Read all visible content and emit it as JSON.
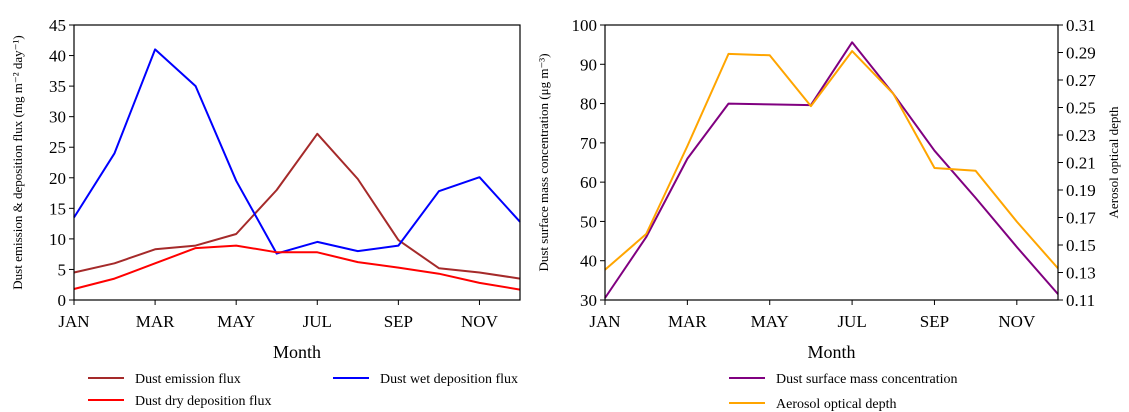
{
  "chart_data": [
    {
      "type": "line",
      "x": [
        "JAN",
        "FEB",
        "MAR",
        "APR",
        "MAY",
        "JUN",
        "JUL",
        "AUG",
        "SEP",
        "OCT",
        "NOV",
        "DEC"
      ],
      "xticks": [
        "JAN",
        "MAR",
        "MAY",
        "JUL",
        "SEP",
        "NOV"
      ],
      "xlabel": "Month",
      "ylabel": "Dust emission & deposition flux (mg m⁻² day⁻¹)",
      "ylim": [
        0,
        45
      ],
      "yticks": [
        "0",
        "5",
        "10",
        "15",
        "20",
        "25",
        "30",
        "35",
        "40",
        "45"
      ],
      "legend": "bottom",
      "series": [
        {
          "name": "Dust emission flux",
          "color": "#a52a2a",
          "values": [
            4.5,
            6.0,
            8.3,
            8.9,
            10.8,
            18.0,
            27.2,
            19.8,
            9.8,
            5.2,
            4.5,
            3.5
          ]
        },
        {
          "name": "Dust wet deposition flux",
          "color": "#0000ff",
          "values": [
            13.5,
            24.0,
            41.0,
            35.0,
            19.5,
            7.6,
            9.5,
            8.0,
            8.9,
            17.8,
            20.1,
            12.8
          ]
        },
        {
          "name": "Dust dry deposition flux",
          "color": "#ff0000",
          "values": [
            1.8,
            3.5,
            6.0,
            8.5,
            8.9,
            7.8,
            7.8,
            6.2,
            5.3,
            4.3,
            2.8,
            1.7
          ]
        }
      ]
    },
    {
      "type": "line",
      "x": [
        "JAN",
        "FEB",
        "MAR",
        "APR",
        "MAY",
        "JUN",
        "JUL",
        "AUG",
        "SEP",
        "OCT",
        "NOV",
        "DEC"
      ],
      "xticks": [
        "JAN",
        "MAR",
        "MAY",
        "JUL",
        "SEP",
        "NOV"
      ],
      "xlabel": "Month",
      "ylabel": "Dust surface mass concentration (μg m⁻³)",
      "ylim": [
        30,
        100
      ],
      "yticks": [
        "30",
        "40",
        "50",
        "60",
        "70",
        "80",
        "90",
        "100"
      ],
      "ylabel_right": "Aerosol optical depth",
      "ylim_right": [
        0.11,
        0.31
      ],
      "yticks_right": [
        "0.11",
        "0.13",
        "0.15",
        "0.17",
        "0.19",
        "0.21",
        "0.23",
        "0.25",
        "0.27",
        "0.29",
        "0.31"
      ],
      "legend": "bottom",
      "series": [
        {
          "name": "Dust surface mass concentration",
          "color": "#800080",
          "axis": "left",
          "values": [
            30.5,
            46.0,
            66.0,
            80.0,
            79.8,
            79.6,
            95.6,
            82.5,
            68.0,
            56.0,
            43.5,
            31.5
          ]
        },
        {
          "name": "Aerosol optical depth",
          "color": "#ffa500",
          "axis": "right",
          "values": [
            0.132,
            0.158,
            0.222,
            0.289,
            0.288,
            0.251,
            0.291,
            0.26,
            0.206,
            0.204,
            0.167,
            0.133
          ]
        }
      ]
    }
  ]
}
